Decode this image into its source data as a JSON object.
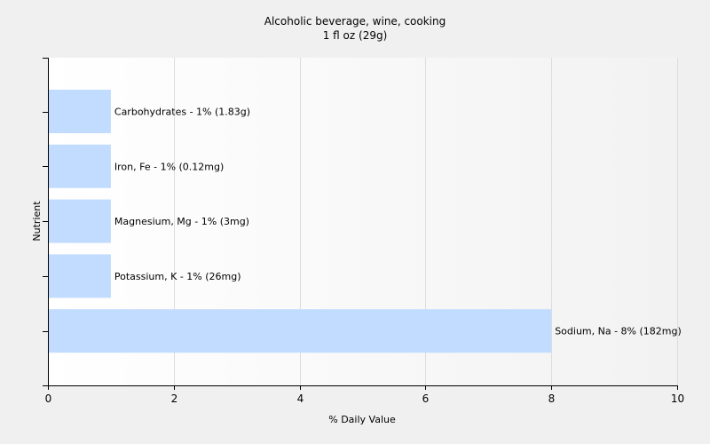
{
  "chart_data": {
    "type": "bar",
    "orientation": "horizontal",
    "title": "Alcoholic beverage, wine, cooking",
    "subtitle": "1 fl oz (29g)",
    "xlabel": "% Daily Value",
    "ylabel": "Nutrient",
    "xlim": [
      0,
      10
    ],
    "xticks": [
      "0",
      "2",
      "4",
      "6",
      "8",
      "10"
    ],
    "grid": true,
    "bar_color": "#c2dcff",
    "categories": [
      "Carbohydrates",
      "Iron, Fe",
      "Magnesium, Mg",
      "Potassium, K",
      "Sodium, Na"
    ],
    "values": [
      1,
      1,
      1,
      1,
      8
    ],
    "data_labels": [
      "Carbohydrates - 1% (1.83g)",
      "Iron, Fe - 1% (0.12mg)",
      "Magnesium, Mg - 1% (3mg)",
      "Potassium, K - 1% (26mg)",
      "Sodium, Na - 8% (182mg)"
    ]
  }
}
